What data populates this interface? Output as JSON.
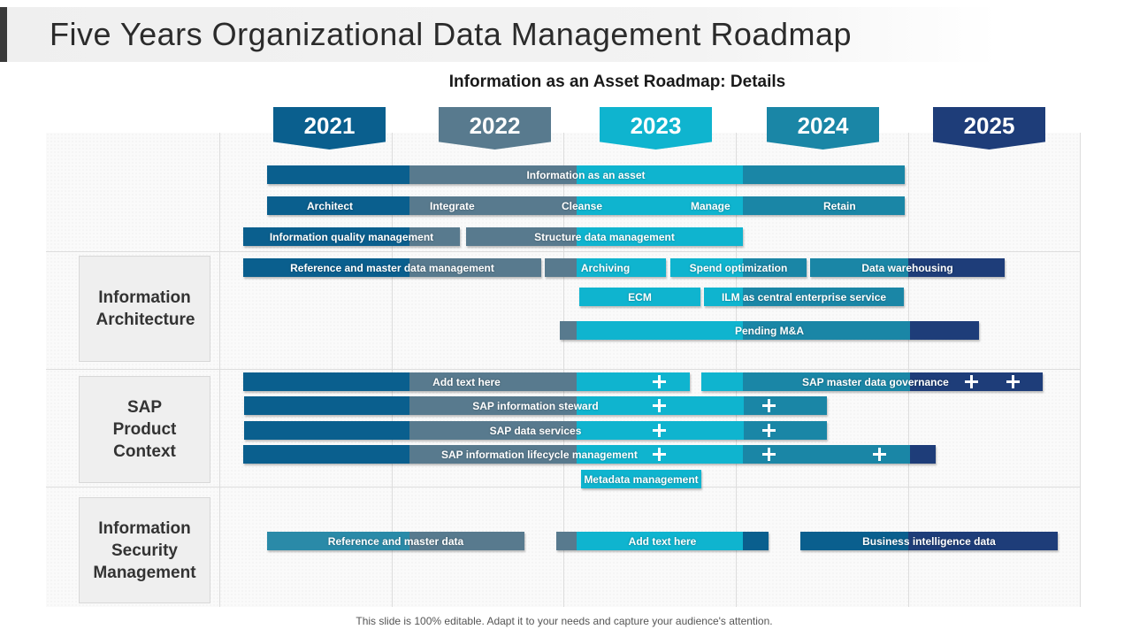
{
  "slide": {
    "title": "Five Years Organizational Data Management Roadmap",
    "subtitle": "Information as an Asset Roadmap: Details",
    "footer": "This slide is 100% editable. Adapt it to your needs and capture your audience's attention."
  },
  "colors": {
    "y2021": "#0a5f8e",
    "y2022": "#587a8e",
    "y2023": "#0fb4cf",
    "y2024": "#1a86a6",
    "y2025": "#1e3d79",
    "teal_mid": "#2a8aa8"
  },
  "years": [
    {
      "label": "2021",
      "color": "#0a5f8e"
    },
    {
      "label": "2022",
      "color": "#587a8e"
    },
    {
      "label": "2023",
      "color": "#0fb4cf"
    },
    {
      "label": "2024",
      "color": "#1a86a6"
    },
    {
      "label": "2025",
      "color": "#1e3d79"
    }
  ],
  "sections": [
    {
      "label": "Information Architecture"
    },
    {
      "label": "SAP Product Context"
    },
    {
      "label": "Information Security Management"
    }
  ],
  "bars": {
    "info_asset": "Information as an asset",
    "architect": "Architect",
    "integrate": "Integrate",
    "cleanse": "Cleanse",
    "manage": "Manage",
    "retain": "Retain",
    "info_quality": "Information quality management",
    "structure_data": "Structure data management",
    "ref_master_mgmt": "Reference and master data management",
    "archiving": "Archiving",
    "spend_opt": "Spend optimization",
    "data_warehousing": "Data warehousing",
    "ecm": "ECM",
    "ilm": "ILM as central enterprise service",
    "pending_ma": "Pending M&A",
    "add_text_1": "Add text here",
    "sap_master_gov": "SAP master data governance",
    "sap_steward": "SAP information steward",
    "sap_data_services": "SAP data services",
    "sap_lifecycle": "SAP information lifecycle management",
    "metadata_mgmt": "Metadata management",
    "ref_master_data": "Reference and master data",
    "add_text_2": "Add text here",
    "bi_data": "Business intelligence data"
  }
}
